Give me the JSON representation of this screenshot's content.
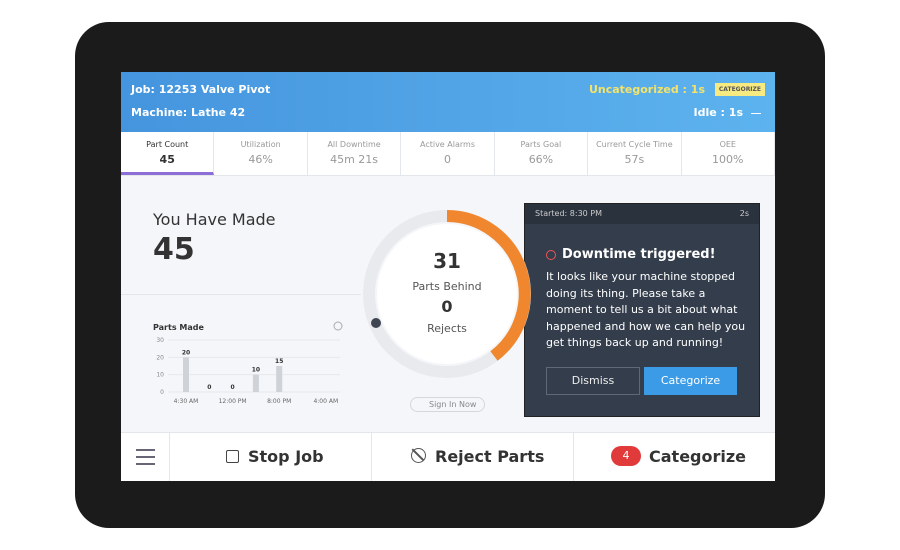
{
  "header": {
    "job": "Job: 12253 Valve Pivot",
    "machine": "Machine: Lathe 42",
    "uncategorized": "Uncategorized : 1s",
    "categorize_tag": "CATEGORIZE",
    "idle": "Idle : 1s"
  },
  "tabs": [
    {
      "label": "Part Count",
      "value": "45"
    },
    {
      "label": "Utilization",
      "value": "46%"
    },
    {
      "label": "All Downtime",
      "value": "45m 21s"
    },
    {
      "label": "Active Alarms",
      "value": "0"
    },
    {
      "label": "Parts Goal",
      "value": "66%"
    },
    {
      "label": "Current Cycle Time",
      "value": "57s"
    },
    {
      "label": "OEE",
      "value": "100%"
    }
  ],
  "made": {
    "title": "You Have Made",
    "value": "45"
  },
  "parts_chart": {
    "type": "bar",
    "title": "Parts Made",
    "values": [
      20,
      0,
      0,
      10,
      15
    ],
    "ylim": [
      0,
      30
    ],
    "yticks": [
      0,
      10,
      20,
      30
    ],
    "x_labels": [
      "4:30 AM",
      "12:00 PM",
      "8:00 PM",
      "4:00 AM"
    ]
  },
  "gauge": {
    "behind_value": "31",
    "behind_label": "Parts Behind",
    "rejects_value": "0",
    "rejects_label": "Rejects",
    "sign_in": "Sign In Now"
  },
  "modal": {
    "started": "Started: 8:30 PM",
    "elapsed": "2s",
    "title": "Downtime triggered!",
    "body": "It looks like your machine stopped doing its thing. Please take a moment to tell us a bit about what happened and how we can help you get things back up and running!",
    "dismiss": "Dismiss",
    "categorize": "Categorize"
  },
  "footer": {
    "stop": "Stop Job",
    "reject": "Reject Parts",
    "badge": "4",
    "categorize": "Categorize"
  }
}
